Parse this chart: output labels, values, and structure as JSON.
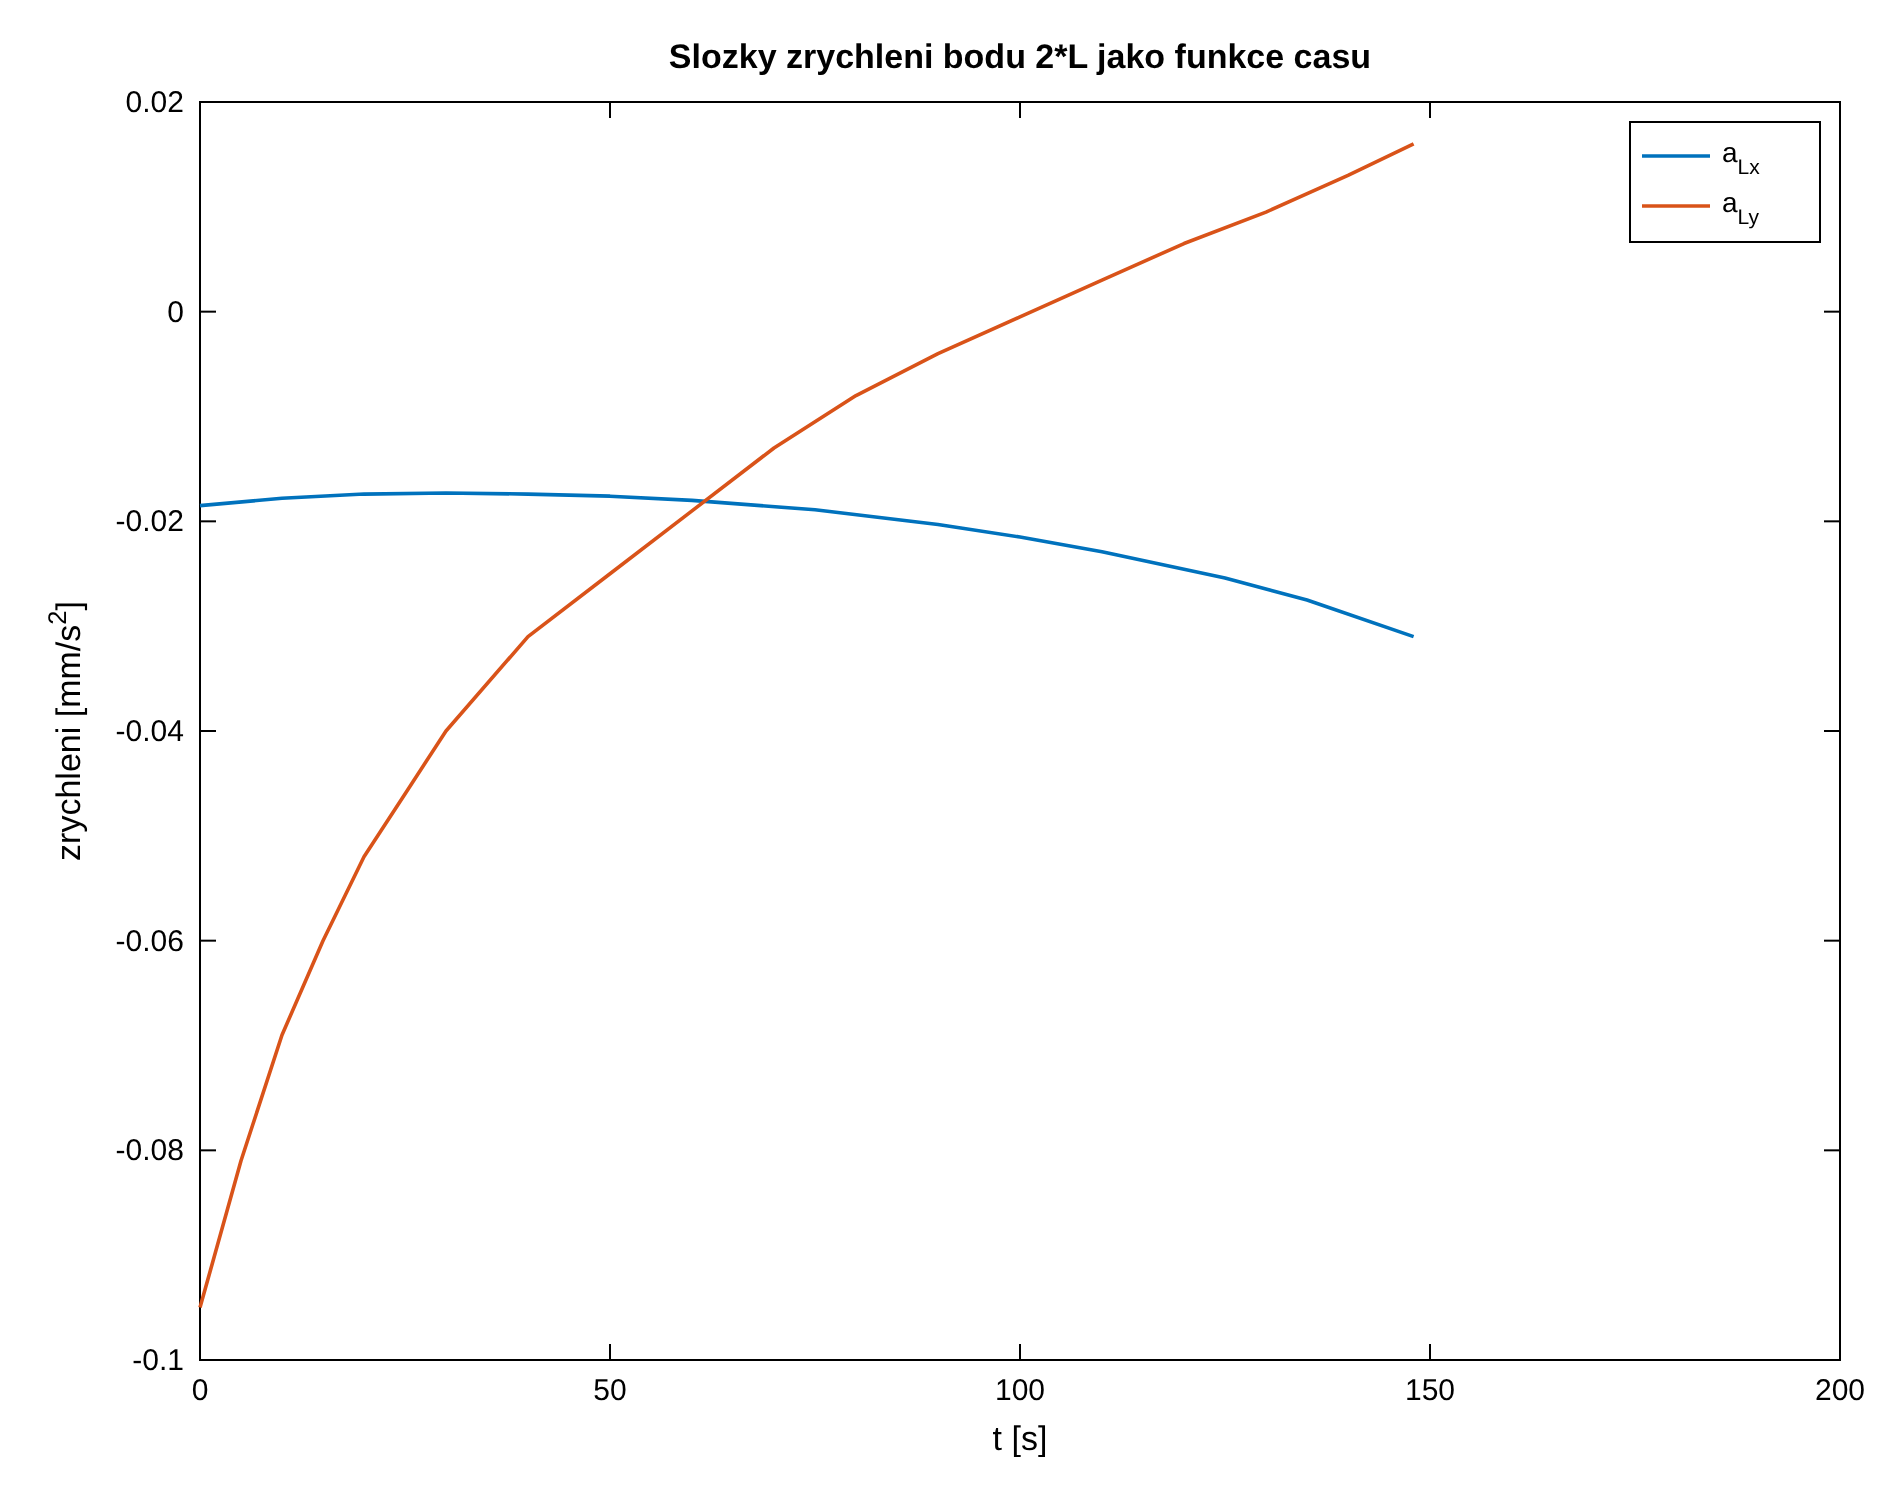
{
  "chart_data": {
    "type": "line",
    "title": "Slozky zrychleni bodu 2*L jako funkce casu",
    "xlabel": "t  [s]",
    "ylabel": "zrychleni  [mm/s$^{2}$]",
    "xlim": [
      0,
      200
    ],
    "xticks": [
      0,
      50,
      100,
      150,
      200
    ],
    "ylim": [
      -0.1,
      0.02
    ],
    "yticks": [
      -0.1,
      -0.08,
      -0.06,
      -0.04,
      -0.02,
      0,
      0.02
    ],
    "grid": false,
    "legend": "top right",
    "line_style": "solid",
    "marker": "none",
    "series": [
      {
        "name": "a$_{Lx}$",
        "color": "#0072bd",
        "x": [
          0,
          10,
          20,
          30,
          40,
          50,
          60,
          75,
          90,
          100,
          110,
          125,
          135,
          148
        ],
        "values": [
          -0.0185,
          -0.0178,
          -0.0174,
          -0.0173,
          -0.0174,
          -0.0176,
          -0.018,
          -0.0189,
          -0.0203,
          -0.0215,
          -0.0229,
          -0.0254,
          -0.0275,
          -0.031
        ]
      },
      {
        "name": "a$_{Ly}$",
        "color": "#d95319",
        "x": [
          0,
          5,
          10,
          15,
          20,
          25,
          30,
          40,
          50,
          60,
          70,
          80,
          90,
          100,
          110,
          120,
          130,
          140,
          148
        ],
        "values": [
          -0.095,
          -0.081,
          -0.069,
          -0.06,
          -0.052,
          -0.046,
          -0.04,
          -0.031,
          -0.025,
          -0.019,
          -0.013,
          -0.008,
          -0.004,
          -0.0005,
          0.003,
          0.0065,
          0.0095,
          0.013,
          0.016
        ]
      }
    ]
  }
}
